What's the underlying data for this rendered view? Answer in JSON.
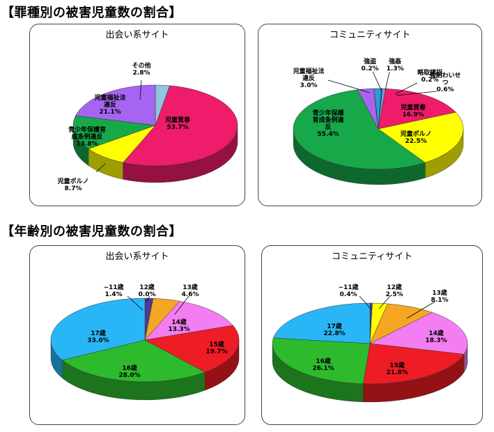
{
  "section1_title": "【罪種別の被害児童数の割合】",
  "section2_title": "【年齢別の被害児童数の割合】",
  "chart_data": [
    {
      "type": "pie",
      "title": "出会い系サイト",
      "slices": [
        {
          "label": "その他",
          "value": 2.8,
          "display": "2.8%",
          "color": "#92c5e1"
        },
        {
          "label": "児童買春",
          "value": 53.7,
          "display": "53.7%",
          "color": "#ee1c6b"
        },
        {
          "label": "児童ポルノ",
          "value": 8.7,
          "display": "8.7%",
          "color": "#ffff00"
        },
        {
          "label": "青少年保護育成条例違反",
          "value": 13.8,
          "display": "13.8%",
          "color": "#17a84a"
        },
        {
          "label": "児童福祉法違反",
          "value": 21.1,
          "display": "21.1%",
          "color": "#a764f2"
        }
      ]
    },
    {
      "type": "pie",
      "title": "コミュニティサイト",
      "slices": [
        {
          "label": "略取誘拐",
          "value": 0.2,
          "display": "0.2%",
          "color": "#4a3d8f"
        },
        {
          "label": "強制わいせつ",
          "value": 0.6,
          "display": "0.6%",
          "color": "#6aa0dc"
        },
        {
          "label": "児童買春",
          "value": 16.9,
          "display": "16.9%",
          "color": "#ee1c6b"
        },
        {
          "label": "児童ポルノ",
          "value": 22.5,
          "display": "22.5%",
          "color": "#ffff00"
        },
        {
          "label": "青少年保護育成条例違反",
          "value": 55.4,
          "display": "55.4%",
          "color": "#17a84a"
        },
        {
          "label": "児童福祉法違反",
          "value": 3.0,
          "display": "3.0%",
          "color": "#a764f2"
        },
        {
          "label": "強盗",
          "value": 0.2,
          "display": "0.2%",
          "color": "#9b9bd0"
        },
        {
          "label": "強姦",
          "value": 1.3,
          "display": "1.3%",
          "color": "#2e9be0"
        }
      ]
    },
    {
      "type": "pie",
      "title": "出会い系サイト",
      "slices": [
        {
          "label": "~11歳",
          "value": 1.4,
          "display": "1.4%",
          "color": "#4a3d8f"
        },
        {
          "label": "12歳",
          "value": 0.0,
          "display": "0.0%",
          "color": "#ffff00"
        },
        {
          "label": "13歳",
          "value": 4.6,
          "display": "4.6%",
          "color": "#f5a623"
        },
        {
          "label": "14歳",
          "value": 13.3,
          "display": "13.3%",
          "color": "#f27ef2"
        },
        {
          "label": "15歳",
          "value": 19.7,
          "display": "19.7%",
          "color": "#ee1c24"
        },
        {
          "label": "16歳",
          "value": 28.0,
          "display": "28.0%",
          "color": "#2dbb2d"
        },
        {
          "label": "17歳",
          "value": 33.0,
          "display": "33.0%",
          "color": "#29b6f6"
        }
      ]
    },
    {
      "type": "pie",
      "title": "コミュニティサイト",
      "slices": [
        {
          "label": "~11歳",
          "value": 0.4,
          "display": "0.4%",
          "color": "#4a3d8f"
        },
        {
          "label": "12歳",
          "value": 2.5,
          "display": "2.5%",
          "color": "#ffff00"
        },
        {
          "label": "13歳",
          "value": 8.1,
          "display": "8.1%",
          "color": "#f5a623"
        },
        {
          "label": "14歳",
          "value": 18.3,
          "display": "18.3%",
          "color": "#f27ef2"
        },
        {
          "label": "15歳",
          "value": 21.8,
          "display": "21.8%",
          "color": "#ee1c24"
        },
        {
          "label": "16歳",
          "value": 26.1,
          "display": "26.1%",
          "color": "#2dbb2d"
        },
        {
          "label": "17歳",
          "value": 22.8,
          "display": "22.8%",
          "color": "#29b6f6"
        }
      ]
    }
  ]
}
